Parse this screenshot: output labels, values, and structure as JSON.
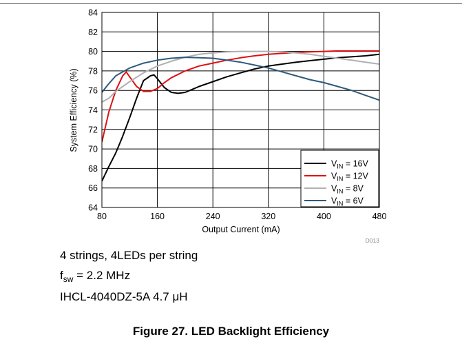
{
  "chart_data": {
    "type": "line",
    "title": "",
    "xlabel": "Output Current (mA)",
    "ylabel": "System Efficiency (%)",
    "xlim": [
      80,
      480
    ],
    "ylim": [
      64,
      84
    ],
    "xticks": [
      80,
      160,
      240,
      320,
      400,
      480
    ],
    "yticks": [
      64,
      66,
      68,
      70,
      72,
      74,
      76,
      78,
      80,
      82,
      84
    ],
    "grid": true,
    "legend_position": "bottom-right",
    "figure_id": "D013",
    "series": [
      {
        "name": "16V",
        "legend_prefix": "V",
        "legend_sub": "IN",
        "legend_suffix": " = 16V",
        "color": "#000000",
        "x": [
          80,
          90,
          100,
          110,
          120,
          130,
          140,
          150,
          155,
          160,
          170,
          180,
          190,
          200,
          210,
          220,
          240,
          260,
          280,
          300,
          320,
          340,
          360,
          380,
          400,
          420,
          440,
          460,
          480
        ],
        "y": [
          66.7,
          68.2,
          69.6,
          71.3,
          73.2,
          75.2,
          77.0,
          77.5,
          77.6,
          77.2,
          76.3,
          75.8,
          75.7,
          75.8,
          76.1,
          76.4,
          76.9,
          77.4,
          77.8,
          78.2,
          78.5,
          78.7,
          78.9,
          79.05,
          79.2,
          79.35,
          79.45,
          79.55,
          79.7
        ]
      },
      {
        "name": "12V",
        "legend_prefix": "V",
        "legend_sub": "IN",
        "legend_suffix": " = 12V",
        "color": "#e01010",
        "x": [
          80,
          90,
          100,
          110,
          115,
          120,
          130,
          140,
          150,
          160,
          170,
          180,
          200,
          220,
          240,
          260,
          280,
          300,
          320,
          340,
          360,
          380,
          400,
          420,
          440,
          460,
          480
        ],
        "y": [
          70.7,
          73.8,
          76.0,
          77.5,
          77.9,
          77.4,
          76.4,
          75.9,
          75.9,
          76.2,
          76.8,
          77.3,
          78.0,
          78.5,
          78.8,
          79.1,
          79.35,
          79.55,
          79.7,
          79.8,
          79.9,
          79.95,
          80.0,
          80.05,
          80.05,
          80.05,
          80.05
        ]
      },
      {
        "name": "8V",
        "legend_prefix": "V",
        "legend_sub": "IN",
        "legend_suffix": " = 8V",
        "color": "#b0b0b0",
        "x": [
          80,
          90,
          100,
          110,
          120,
          140,
          160,
          180,
          200,
          220,
          240,
          260,
          280,
          300,
          320,
          340,
          360,
          380,
          400,
          420,
          440,
          460,
          480
        ],
        "y": [
          74.8,
          75.2,
          75.9,
          76.4,
          76.9,
          77.8,
          78.5,
          79.0,
          79.4,
          79.7,
          79.85,
          79.95,
          80.0,
          80.0,
          80.0,
          79.95,
          79.85,
          79.7,
          79.5,
          79.3,
          79.1,
          78.9,
          78.7
        ]
      },
      {
        "name": "6V",
        "legend_prefix": "V",
        "legend_sub": "IN",
        "legend_suffix": " = 6V",
        "color": "#2e5a7a",
        "x": [
          80,
          90,
          100,
          110,
          120,
          140,
          160,
          180,
          200,
          220,
          240,
          260,
          280,
          300,
          320,
          340,
          360,
          380,
          400,
          420,
          440,
          460,
          480
        ],
        "y": [
          75.8,
          76.7,
          77.5,
          77.9,
          78.3,
          78.8,
          79.1,
          79.3,
          79.4,
          79.35,
          79.3,
          79.1,
          78.9,
          78.6,
          78.3,
          77.9,
          77.5,
          77.1,
          76.8,
          76.4,
          76.0,
          75.5,
          75.0
        ]
      }
    ]
  },
  "notes": {
    "line1": "4 strings, 4LEDs per string",
    "line2_prefix": "f",
    "line2_sub": "sw",
    "line2_suffix": " = 2.2 MHz",
    "line3": "IHCL-4040DZ-5A 4.7 μH"
  },
  "caption": "Figure 27. LED Backlight Efficiency"
}
